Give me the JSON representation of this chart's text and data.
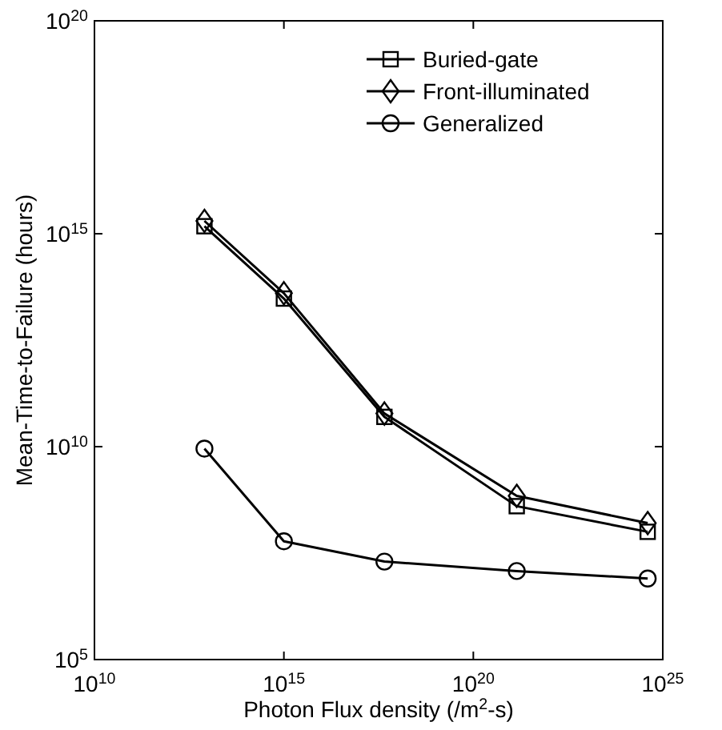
{
  "chart_data": {
    "type": "line",
    "xlabel": "Photon Flux density (/m$^{2}$-s)",
    "ylabel": "Mean-Time-to-Failure (hours)",
    "log": "xy",
    "grid": false,
    "legend": "top right",
    "line_style": "solid",
    "x": [
      8000000000000.0,
      1000000000000000.0,
      4.5e+17,
      1.4e+21,
      4e+24
    ],
    "xlim": [
      10000000000.0,
      1e+25
    ],
    "ylim": [
      100000.0,
      1e+20
    ],
    "xticks": [
      {
        "value": 10000000000.0,
        "label": "10$^{10}$"
      },
      {
        "value": 1000000000000000.0,
        "label": "10$^{15}$"
      },
      {
        "value": 1e+20,
        "label": "10$^{20}$"
      },
      {
        "value": 1e+25,
        "label": "10$^{25}$"
      }
    ],
    "yticks": [
      {
        "value": 100000.0,
        "label": "10$^{5}$"
      },
      {
        "value": 10000000000.0,
        "label": "10$^{10}$"
      },
      {
        "value": 1000000000000000.0,
        "label": "10$^{15}$"
      },
      {
        "value": 1e+20,
        "label": "10$^{20}$"
      }
    ],
    "series": [
      {
        "name": "Buried-gate",
        "color": "#000000",
        "marker": "square",
        "values": [
          1500000000000000.0,
          30000000000000.0,
          50000000000.0,
          400000000.0,
          100000000.0
        ]
      },
      {
        "name": "Front-illuminated",
        "color": "#000000",
        "marker": "diamond",
        "values": [
          2000000000000000.0,
          40000000000000.0,
          60000000000.0,
          700000000.0,
          160000000.0
        ]
      },
      {
        "name": "Generalized",
        "color": "#000000",
        "marker": "circle",
        "values": [
          9000000000.0,
          60000000.0,
          20000000.0,
          12000000.0,
          8000000.0
        ]
      }
    ]
  }
}
